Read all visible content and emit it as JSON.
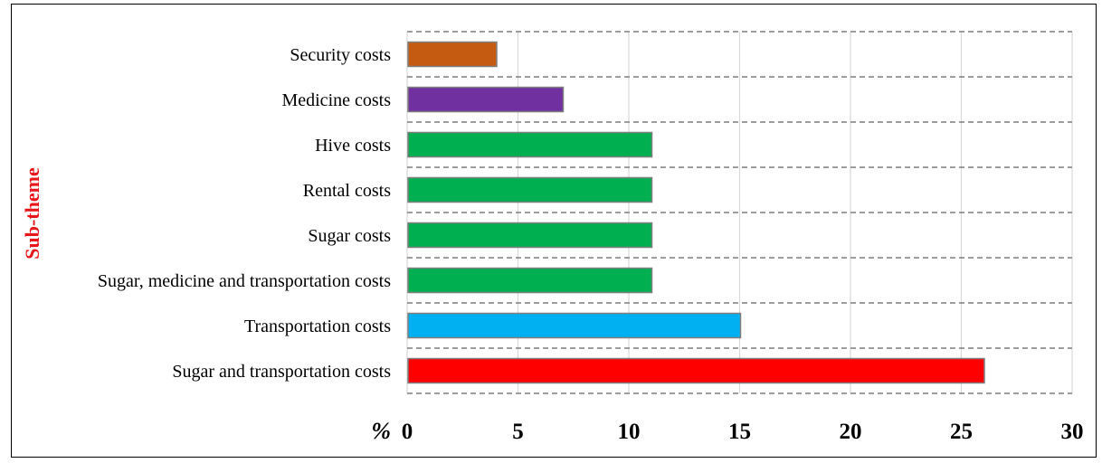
{
  "chart_data": {
    "type": "bar",
    "orientation": "horizontal",
    "categories": [
      "Security costs",
      "Medicine costs",
      "Hive costs",
      "Rental costs",
      "Sugar costs",
      "Sugar, medicine and transportation costs",
      "Transportation costs",
      "Sugar and transportation costs"
    ],
    "values": [
      4,
      7,
      11,
      11,
      11,
      11,
      15,
      26
    ],
    "colors": [
      "#c55a11",
      "#7030a0",
      "#00b050",
      "#00b050",
      "#00b050",
      "#00b050",
      "#00b0f0",
      "#ff0000"
    ],
    "xlim": [
      0,
      30
    ],
    "xticks": [
      0,
      5,
      10,
      15,
      20,
      25,
      30
    ],
    "xtick_labels": [
      "0",
      "5",
      "10",
      "15",
      "20",
      "25",
      "30"
    ],
    "x_unit_label": "%",
    "ylabel": "Sub-theme",
    "ylabel_color": "#e8151b",
    "grid": "vertical solid, horizontal dashed",
    "legend": "none"
  }
}
